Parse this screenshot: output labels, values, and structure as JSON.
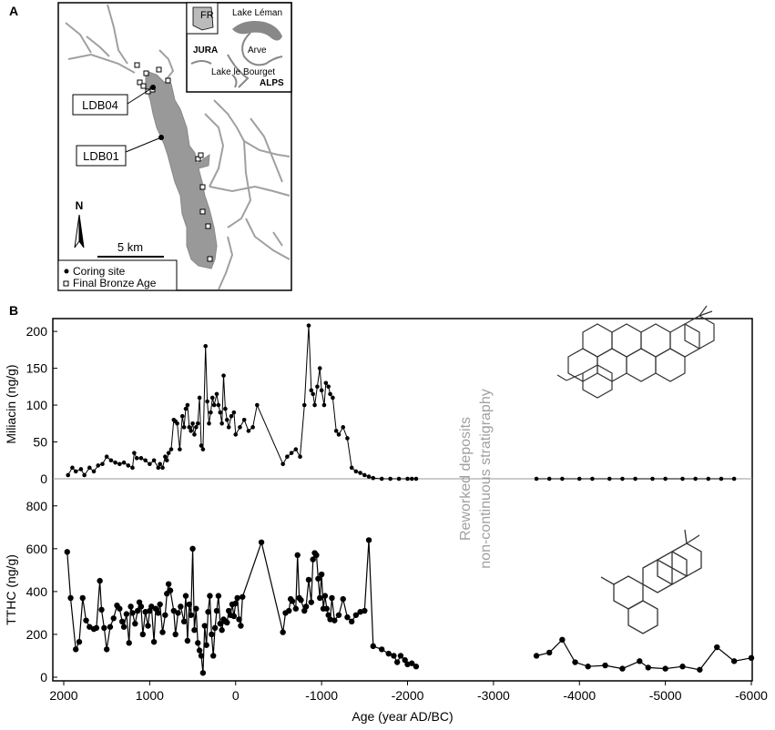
{
  "panel_a": {
    "label": "A",
    "sites": {
      "ldb04": "LDB04",
      "ldb01": "LDB01"
    },
    "north_arrow": "N",
    "scale_bar": "5 km",
    "legend": {
      "coring_site": "Coring site",
      "bronze_age": "Final Bronze Age"
    },
    "inset": {
      "fr": "FR",
      "lake_leman": "Lake Léman",
      "jura": "JURA",
      "arve": "Arve",
      "lake_bourget": "Lake le Bourget",
      "alps": "ALPS"
    },
    "colors": {
      "lake": "#999999",
      "rivers": "#999999"
    }
  },
  "panel_b": {
    "label": "B",
    "gap_label_line1": "Reworked deposits",
    "gap_label_line2": "non-continuous stratigraphy"
  },
  "chart_data": [
    {
      "type": "line",
      "ylabel": "Miliacin (ng/g)",
      "xlabel": "Age (year AD/BC)",
      "xlim": [
        2000,
        -6000
      ],
      "ylim": [
        0,
        210
      ],
      "yticks": [
        0,
        50,
        100,
        150,
        200
      ],
      "series": [
        {
          "values": [
            [
              1950,
              5
            ],
            [
              1900,
              15
            ],
            [
              1860,
              10
            ],
            [
              1800,
              13
            ],
            [
              1760,
              5
            ],
            [
              1700,
              15
            ],
            [
              1650,
              10
            ],
            [
              1600,
              18
            ],
            [
              1550,
              20
            ],
            [
              1500,
              30
            ],
            [
              1450,
              25
            ],
            [
              1400,
              22
            ],
            [
              1350,
              20
            ],
            [
              1300,
              22
            ],
            [
              1250,
              18
            ],
            [
              1200,
              15
            ],
            [
              1180,
              35
            ],
            [
              1150,
              28
            ],
            [
              1100,
              28
            ],
            [
              1050,
              25
            ],
            [
              1000,
              20
            ],
            [
              950,
              25
            ],
            [
              900,
              15
            ],
            [
              880,
              20
            ],
            [
              850,
              15
            ],
            [
              820,
              30
            ],
            [
              800,
              25
            ],
            [
              780,
              35
            ],
            [
              750,
              40
            ],
            [
              720,
              80
            ],
            [
              700,
              78
            ],
            [
              680,
              75
            ],
            [
              650,
              40
            ],
            [
              620,
              85
            ],
            [
              600,
              70
            ],
            [
              580,
              95
            ],
            [
              560,
              100
            ],
            [
              540,
              70
            ],
            [
              520,
              65
            ],
            [
              500,
              75
            ],
            [
              480,
              60
            ],
            [
              460,
              70
            ],
            [
              440,
              75
            ],
            [
              420,
              110
            ],
            [
              400,
              45
            ],
            [
              380,
              40
            ],
            [
              350,
              180
            ],
            [
              330,
              105
            ],
            [
              310,
              75
            ],
            [
              290,
              90
            ],
            [
              270,
              110
            ],
            [
              250,
              100
            ],
            [
              220,
              115
            ],
            [
              200,
              100
            ],
            [
              180,
              90
            ],
            [
              160,
              75
            ],
            [
              140,
              140
            ],
            [
              120,
              95
            ],
            [
              100,
              80
            ],
            [
              80,
              70
            ],
            [
              50,
              85
            ],
            [
              20,
              90
            ],
            [
              0,
              60
            ],
            [
              -50,
              70
            ],
            [
              -100,
              80
            ],
            [
              -150,
              65
            ],
            [
              -200,
              70
            ],
            [
              -250,
              100
            ],
            [
              -550,
              20
            ],
            [
              -600,
              30
            ],
            [
              -650,
              35
            ],
            [
              -700,
              40
            ],
            [
              -750,
              30
            ],
            [
              -800,
              100
            ],
            [
              -850,
              208
            ],
            [
              -880,
              120
            ],
            [
              -900,
              115
            ],
            [
              -920,
              100
            ],
            [
              -950,
              125
            ],
            [
              -980,
              150
            ],
            [
              -1000,
              120
            ],
            [
              -1030,
              100
            ],
            [
              -1050,
              130
            ],
            [
              -1080,
              125
            ],
            [
              -1100,
              115
            ],
            [
              -1130,
              110
            ],
            [
              -1170,
              65
            ],
            [
              -1200,
              60
            ],
            [
              -1250,
              70
            ],
            [
              -1300,
              55
            ],
            [
              -1350,
              15
            ],
            [
              -1400,
              10
            ],
            [
              -1450,
              8
            ],
            [
              -1500,
              5
            ],
            [
              -1550,
              3
            ],
            [
              -1600,
              1
            ],
            [
              -1700,
              0
            ],
            [
              -1800,
              0
            ],
            [
              -1900,
              0
            ],
            [
              -2000,
              0
            ],
            [
              -2050,
              0
            ],
            [
              -2100,
              0
            ]
          ]
        },
        {
          "values": [
            [
              -3500,
              0
            ],
            [
              -3650,
              0
            ],
            [
              -3800,
              0
            ],
            [
              -4000,
              0
            ],
            [
              -4150,
              0
            ],
            [
              -4350,
              0
            ],
            [
              -4500,
              0
            ],
            [
              -4650,
              0
            ],
            [
              -4850,
              0
            ],
            [
              -5000,
              0
            ],
            [
              -5200,
              0
            ],
            [
              -5350,
              0
            ],
            [
              -5500,
              0
            ],
            [
              -5650,
              0
            ],
            [
              -5800,
              0
            ]
          ]
        }
      ]
    },
    {
      "type": "line",
      "ylabel": "TTHC (ng/g)",
      "xlabel": "Age (year AD/BC)",
      "xlim": [
        2000,
        -6000
      ],
      "ylim": [
        0,
        850
      ],
      "yticks": [
        0,
        200,
        400,
        600,
        800
      ],
      "xticks": [
        2000,
        1000,
        0,
        -1000,
        -2000,
        -3000,
        -4000,
        -5000,
        -6000
      ],
      "series": [
        {
          "values": [
            [
              1960,
              585
            ],
            [
              1920,
              370
            ],
            [
              1860,
              130
            ],
            [
              1820,
              165
            ],
            [
              1780,
              370
            ],
            [
              1740,
              265
            ],
            [
              1700,
              235
            ],
            [
              1650,
              225
            ],
            [
              1620,
              230
            ],
            [
              1580,
              450
            ],
            [
              1560,
              315
            ],
            [
              1530,
              230
            ],
            [
              1500,
              130
            ],
            [
              1460,
              235
            ],
            [
              1420,
              275
            ],
            [
              1380,
              335
            ],
            [
              1350,
              320
            ],
            [
              1320,
              260
            ],
            [
              1300,
              235
            ],
            [
              1270,
              295
            ],
            [
              1240,
              160
            ],
            [
              1220,
              330
            ],
            [
              1200,
              300
            ],
            [
              1170,
              250
            ],
            [
              1140,
              310
            ],
            [
              1120,
              350
            ],
            [
              1100,
              330
            ],
            [
              1080,
              200
            ],
            [
              1050,
              305
            ],
            [
              1020,
              240
            ],
            [
              1000,
              310
            ],
            [
              980,
              330
            ],
            [
              950,
              165
            ],
            [
              930,
              320
            ],
            [
              900,
              300
            ],
            [
              880,
              340
            ],
            [
              850,
              210
            ],
            [
              820,
              290
            ],
            [
              800,
              390
            ],
            [
              780,
              435
            ],
            [
              760,
              405
            ],
            [
              720,
              310
            ],
            [
              700,
              200
            ],
            [
              670,
              300
            ],
            [
              640,
              330
            ],
            [
              600,
              260
            ],
            [
              580,
              380
            ],
            [
              560,
              170
            ],
            [
              540,
              340
            ],
            [
              520,
              290
            ],
            [
              500,
              600
            ],
            [
              480,
              220
            ],
            [
              460,
              320
            ],
            [
              440,
              160
            ],
            [
              420,
              125
            ],
            [
              400,
              100
            ],
            [
              380,
              20
            ],
            [
              360,
              240
            ],
            [
              340,
              150
            ],
            [
              320,
              305
            ],
            [
              300,
              380
            ],
            [
              280,
              200
            ],
            [
              260,
              100
            ],
            [
              240,
              230
            ],
            [
              220,
              310
            ],
            [
              200,
              380
            ],
            [
              180,
              250
            ],
            [
              160,
              220
            ],
            [
              140,
              270
            ],
            [
              120,
              260
            ],
            [
              100,
              255
            ],
            [
              80,
              310
            ],
            [
              60,
              290
            ],
            [
              40,
              340
            ],
            [
              20,
              285
            ],
            [
              0,
              345
            ],
            [
              -20,
              370
            ],
            [
              -40,
              270
            ],
            [
              -60,
              240
            ],
            [
              -80,
              375
            ],
            [
              -300,
              630
            ],
            [
              -550,
              210
            ],
            [
              -580,
              300
            ],
            [
              -620,
              310
            ],
            [
              -640,
              365
            ],
            [
              -660,
              355
            ],
            [
              -700,
              320
            ],
            [
              -720,
              570
            ],
            [
              -740,
              370
            ],
            [
              -760,
              360
            ],
            [
              -800,
              310
            ],
            [
              -820,
              330
            ],
            [
              -850,
              455
            ],
            [
              -880,
              350
            ],
            [
              -900,
              550
            ],
            [
              -920,
              580
            ],
            [
              -940,
              570
            ],
            [
              -960,
              460
            ],
            [
              -980,
              370
            ],
            [
              -1000,
              480
            ],
            [
              -1020,
              320
            ],
            [
              -1040,
              380
            ],
            [
              -1060,
              320
            ],
            [
              -1080,
              290
            ],
            [
              -1100,
              270
            ],
            [
              -1120,
              370
            ],
            [
              -1150,
              265
            ],
            [
              -1200,
              290
            ],
            [
              -1250,
              365
            ],
            [
              -1300,
              280
            ],
            [
              -1350,
              260
            ],
            [
              -1400,
              290
            ],
            [
              -1450,
              305
            ],
            [
              -1500,
              310
            ],
            [
              -1550,
              640
            ],
            [
              -1600,
              145
            ],
            [
              -1700,
              130
            ],
            [
              -1780,
              110
            ],
            [
              -1840,
              100
            ],
            [
              -1880,
              70
            ],
            [
              -1920,
              100
            ],
            [
              -1970,
              80
            ],
            [
              -2000,
              60
            ],
            [
              -2050,
              65
            ],
            [
              -2100,
              50
            ]
          ]
        },
        {
          "values": [
            [
              -3500,
              100
            ],
            [
              -3650,
              115
            ],
            [
              -3800,
              175
            ],
            [
              -3950,
              70
            ],
            [
              -4100,
              50
            ],
            [
              -4300,
              55
            ],
            [
              -4500,
              40
            ],
            [
              -4700,
              75
            ],
            [
              -4800,
              45
            ],
            [
              -5000,
              40
            ],
            [
              -5200,
              50
            ],
            [
              -5400,
              35
            ],
            [
              -5600,
              140
            ],
            [
              -5800,
              75
            ],
            [
              -6000,
              90
            ]
          ]
        }
      ]
    }
  ]
}
